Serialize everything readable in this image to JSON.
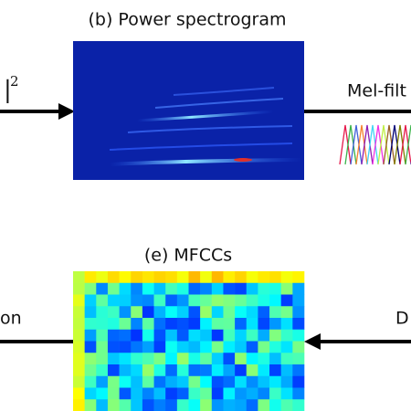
{
  "panels": {
    "spectrogram": {
      "title": "(b) Power spectrogram"
    },
    "mfcc": {
      "title": "(e) MFCCs"
    }
  },
  "labels": {
    "power_bar": "|",
    "power_exponent": "2",
    "mel": "Mel-filt",
    "left_bottom": "on",
    "right_bottom": "D"
  }
}
